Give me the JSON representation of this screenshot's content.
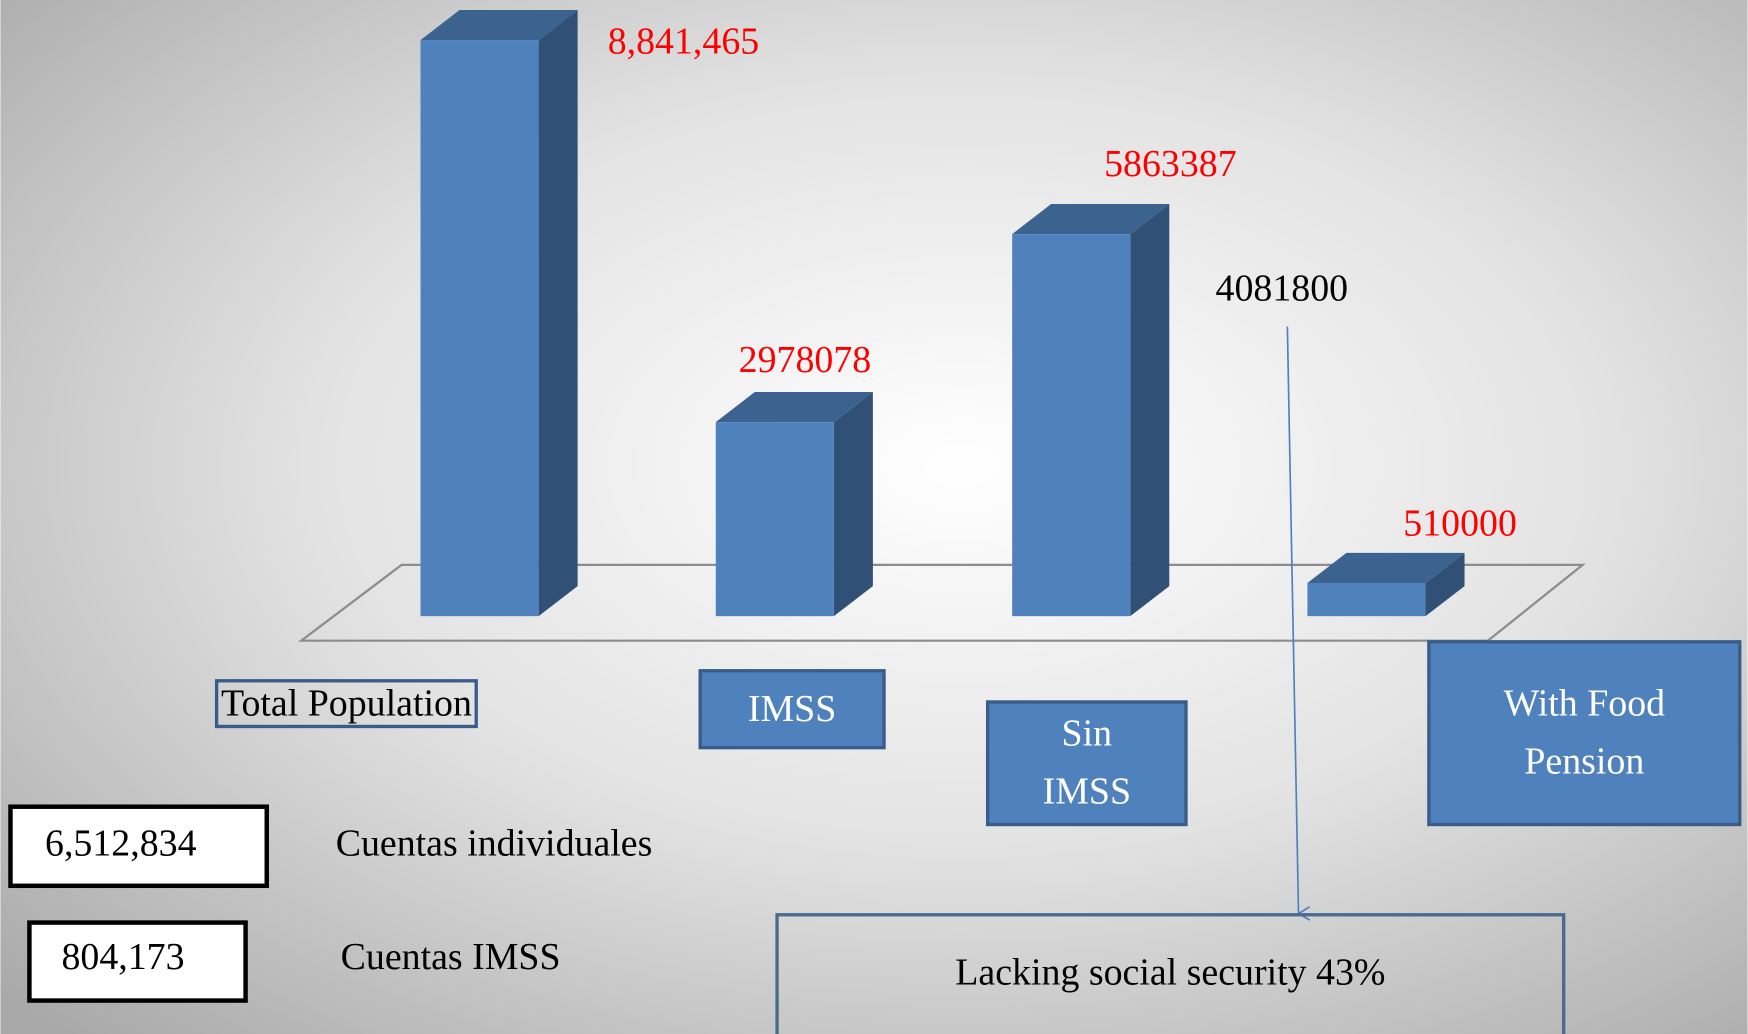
{
  "chart_data": {
    "type": "bar",
    "categories": [
      "Total Population",
      "IMSS",
      "Sin IMSS",
      "With Food Pension"
    ],
    "values": [
      8841465,
      2978078,
      5863387,
      510000
    ],
    "value_labels": [
      "8,841,465",
      "2978078",
      "5863387",
      "510000"
    ],
    "color": "#4f81bd",
    "annotations": {
      "difference": "4081800",
      "lacking": "Lacking social security 43%",
      "accounts": [
        {
          "value": "6,512,834",
          "label": "Cuentas individuales"
        },
        {
          "value": "804,173",
          "label": "Cuentas IMSS"
        }
      ]
    }
  }
}
